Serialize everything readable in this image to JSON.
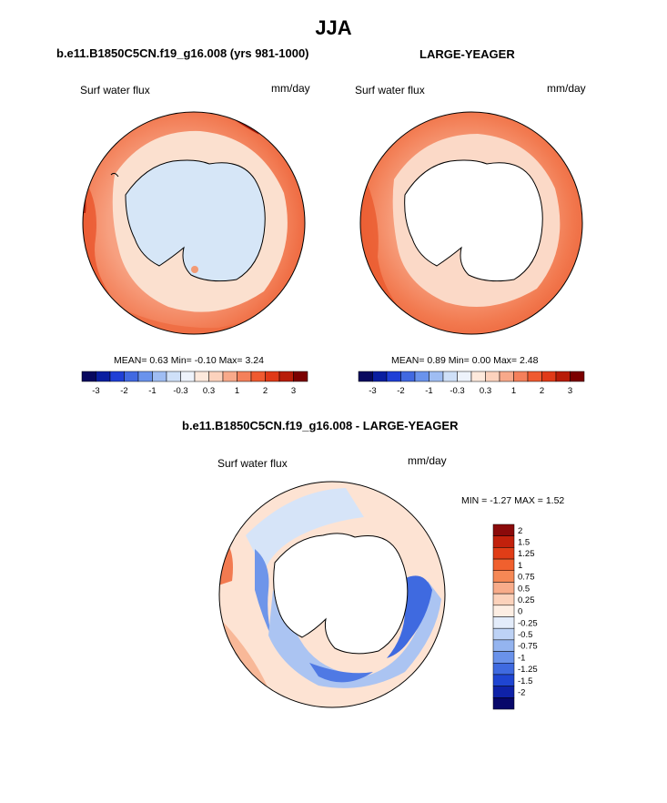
{
  "title": "JJA",
  "panel1": {
    "header": "b.e11.B1850C5CN.f19_g16.008 (yrs 981-1000)",
    "left_label": "Surf water flux",
    "units": "mm/day",
    "stats": {
      "mean_label": "MEAN=",
      "mean": "0.63",
      "min_label": "Min=",
      "min": "-0.10",
      "max_label": "Max=",
      "max": "3.24"
    }
  },
  "panel2": {
    "header": "LARGE-YEAGER",
    "left_label": "Surf water flux",
    "units": "mm/day",
    "stats": {
      "mean_label": "MEAN=",
      "mean": "0.89",
      "min_label": "Min=",
      "min": "0.00",
      "max_label": "Max=",
      "max": "2.48"
    }
  },
  "colorbar_top": {
    "ticks": [
      "-3",
      "-2",
      "-1",
      "-0.3",
      "0.3",
      "1",
      "2",
      "3"
    ],
    "colors": [
      "#08085e",
      "#0a1ea0",
      "#1f3fd6",
      "#4169e1",
      "#6a93ec",
      "#9fbdf3",
      "#cfe0f8",
      "#eef3fb",
      "#fde9dc",
      "#fcd2bd",
      "#f8a98a",
      "#f4805b",
      "#ef5a30",
      "#e03a18",
      "#b81c08",
      "#7b0000"
    ]
  },
  "panel3": {
    "header": "b.e11.B1850C5CN.f19_g16.008 - LARGE-YEAGER",
    "left_label": "Surf water flux",
    "units": "mm/day",
    "minmax": {
      "min_label": "MIN =",
      "min": "-1.27",
      "max_label": "MAX =",
      "max": "1.52"
    }
  },
  "colorbar_diff": {
    "ticks": [
      "2",
      "1.5",
      "1.25",
      "1",
      "0.75",
      "0.5",
      "0.25",
      "0",
      "-0.25",
      "-0.5",
      "-0.75",
      "-1",
      "-1.25",
      "-1.5",
      "-2"
    ],
    "colors": [
      "#8b0a0a",
      "#c2210c",
      "#e03d17",
      "#f0602e",
      "#f58855",
      "#f8ac8a",
      "#fcd2bb",
      "#fdeee3",
      "#e3ecfa",
      "#bdd2f5",
      "#94b4ef",
      "#6a92ea",
      "#3f6ae0",
      "#1f45d2",
      "#0f22a8",
      "#08086a"
    ]
  },
  "chart_data": [
    {
      "type": "heatmap",
      "title": "b.e11.B1850C5CN.f19_g16.008 (yrs 981-1000)",
      "variable": "Surf water flux",
      "units": "mm/day",
      "projection": "south polar stereographic",
      "season": "JJA",
      "mean": 0.63,
      "min": -0.1,
      "max": 3.24,
      "levels": [
        -3,
        -2,
        -1,
        -0.3,
        0.3,
        1,
        2,
        3
      ]
    },
    {
      "type": "heatmap",
      "title": "LARGE-YEAGER",
      "variable": "Surf water flux",
      "units": "mm/day",
      "projection": "south polar stereographic",
      "season": "JJA",
      "mean": 0.89,
      "min": 0.0,
      "max": 2.48,
      "levels": [
        -3,
        -2,
        -1,
        -0.3,
        0.3,
        1,
        2,
        3
      ]
    },
    {
      "type": "heatmap",
      "title": "b.e11.B1850C5CN.f19_g16.008 - LARGE-YEAGER",
      "variable": "Surf water flux",
      "units": "mm/day",
      "projection": "south polar stereographic",
      "season": "JJA",
      "min": -1.27,
      "max": 1.52,
      "levels": [
        -2,
        -1.5,
        -1.25,
        -1,
        -0.75,
        -0.5,
        -0.25,
        0,
        0.25,
        0.5,
        0.75,
        1,
        1.25,
        1.5,
        2
      ]
    }
  ]
}
